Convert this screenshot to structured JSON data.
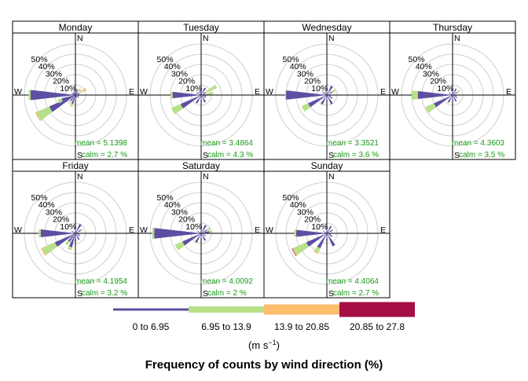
{
  "chart_data": {
    "type": "polar-bar",
    "title": "Frequency of counts by wind direction (%)",
    "radial_ticks": [
      "10%",
      "20%",
      "30%",
      "40%",
      "50%"
    ],
    "radial_max": 50,
    "cardinal_labels": {
      "n": "N",
      "e": "E",
      "s": "S",
      "w": "W"
    },
    "legend": {
      "unit": "(m s",
      "unit_sup": "−1",
      "unit_close": ")",
      "bins": [
        {
          "label": "0 to 6.95",
          "color": "#5e4fa2"
        },
        {
          "label": "6.95 to 13.9",
          "color": "#b7e08a"
        },
        {
          "label": "13.9 to 20.85",
          "color": "#fdbe6e"
        },
        {
          "label": "20.85 to 27.8",
          "color": "#a50f45"
        }
      ]
    },
    "panels": [
      {
        "name": "Monday",
        "mean_label": "mean",
        "mean": "5.1398",
        "calm_label": "calm",
        "calm": "2.7 %",
        "spokes": [
          {
            "dir": 270,
            "s": [
              44,
              2,
              0,
              0
            ]
          },
          {
            "dir": 240,
            "s": [
              28,
              14,
              1,
              0
            ]
          },
          {
            "dir": 250,
            "s": [
              14,
              4,
              0,
              0
            ]
          },
          {
            "dir": 60,
            "s": [
              4,
              5,
              3,
              0
            ]
          },
          {
            "dir": 40,
            "s": [
              3,
              2,
              2,
              0.3
            ]
          },
          {
            "dir": 200,
            "s": [
              9,
              3,
              0,
              0
            ]
          },
          {
            "dir": 220,
            "s": [
              7,
              2,
              0,
              0
            ]
          },
          {
            "dir": 0,
            "s": [
              5,
              0,
              0,
              0
            ]
          },
          {
            "dir": 20,
            "s": [
              6,
              0,
              0,
              0
            ]
          },
          {
            "dir": 80,
            "s": [
              4,
              0,
              0,
              0
            ]
          },
          {
            "dir": 100,
            "s": [
              3,
              0,
              0,
              0
            ]
          },
          {
            "dir": 120,
            "s": [
              4,
              0,
              0,
              0
            ]
          },
          {
            "dir": 140,
            "s": [
              3,
              0,
              0,
              0
            ]
          },
          {
            "dir": 160,
            "s": [
              3,
              0,
              0,
              0
            ]
          },
          {
            "dir": 180,
            "s": [
              5,
              0,
              0,
              0
            ]
          },
          {
            "dir": 290,
            "s": [
              4,
              0,
              0,
              0
            ]
          },
          {
            "dir": 310,
            "s": [
              3,
              0,
              0,
              0
            ]
          },
          {
            "dir": 330,
            "s": [
              4,
              0,
              0,
              0
            ]
          },
          {
            "dir": 350,
            "s": [
              3,
              0,
              0,
              0
            ]
          }
        ]
      },
      {
        "name": "Tuesday",
        "mean_label": "mean",
        "mean": "3.4864",
        "calm_label": "calm",
        "calm": "4.3 %",
        "spokes": [
          {
            "dir": 270,
            "s": [
              28,
              2,
              0,
              0
            ]
          },
          {
            "dir": 240,
            "s": [
              22,
              10,
              0,
              0
            ]
          },
          {
            "dir": 60,
            "s": [
              5,
              12,
              0,
              0
            ]
          },
          {
            "dir": 80,
            "s": [
              4,
              8,
              0,
              0
            ]
          },
          {
            "dir": 30,
            "s": [
              8,
              0,
              0,
              0
            ]
          },
          {
            "dir": 0,
            "s": [
              6,
              0,
              0,
              0
            ]
          },
          {
            "dir": 210,
            "s": [
              9,
              0,
              0,
              0
            ]
          },
          {
            "dir": 150,
            "s": [
              8,
              0,
              0,
              0
            ]
          },
          {
            "dir": 180,
            "s": [
              6,
              0,
              0,
              0
            ]
          },
          {
            "dir": 120,
            "s": [
              5,
              0,
              0,
              0
            ]
          },
          {
            "dir": 100,
            "s": [
              5,
              0,
              0,
              0
            ]
          },
          {
            "dir": 300,
            "s": [
              5,
              0,
              0,
              0
            ]
          },
          {
            "dir": 330,
            "s": [
              4,
              0,
              0,
              0
            ]
          },
          {
            "dir": 350,
            "s": [
              4,
              0,
              0,
              0
            ]
          }
        ]
      },
      {
        "name": "Wednesday",
        "mean_label": "mean",
        "mean": "3.3521",
        "calm_label": "calm",
        "calm": "3.6 %",
        "spokes": [
          {
            "dir": 270,
            "s": [
              40,
              1,
              0,
              0
            ]
          },
          {
            "dir": 240,
            "s": [
              20,
              7,
              0,
              0
            ]
          },
          {
            "dir": 60,
            "s": [
              6,
              4,
              0,
              0
            ]
          },
          {
            "dir": 30,
            "s": [
              10,
              0,
              0,
              0
            ]
          },
          {
            "dir": 0,
            "s": [
              6,
              0,
              0,
              0
            ]
          },
          {
            "dir": 210,
            "s": [
              10,
              1,
              0,
              0
            ]
          },
          {
            "dir": 150,
            "s": [
              10,
              0,
              0,
              0
            ]
          },
          {
            "dir": 180,
            "s": [
              6,
              0,
              0,
              0
            ]
          },
          {
            "dir": 120,
            "s": [
              6,
              0,
              0,
              0
            ]
          },
          {
            "dir": 100,
            "s": [
              4,
              0,
              0,
              0
            ]
          },
          {
            "dir": 300,
            "s": [
              5,
              0,
              0,
              0
            ]
          },
          {
            "dir": 330,
            "s": [
              4,
              0,
              0,
              0
            ]
          }
        ]
      },
      {
        "name": "Thursday",
        "mean_label": "mean",
        "mean": "4.3603",
        "calm_label": "calm",
        "calm": "3.5 %",
        "spokes": [
          {
            "dir": 270,
            "s": [
              34,
              6,
              0,
              0
            ]
          },
          {
            "dir": 240,
            "s": [
              20,
              9,
              0.3,
              0
            ]
          },
          {
            "dir": 60,
            "s": [
              5,
              3,
              0,
              0
            ]
          },
          {
            "dir": 30,
            "s": [
              7,
              0,
              0,
              0
            ]
          },
          {
            "dir": 0,
            "s": [
              5,
              0,
              0,
              0
            ]
          },
          {
            "dir": 210,
            "s": [
              8,
              1,
              0,
              0
            ]
          },
          {
            "dir": 150,
            "s": [
              7,
              0,
              0,
              0
            ]
          },
          {
            "dir": 180,
            "s": [
              5,
              0,
              0,
              0
            ]
          },
          {
            "dir": 120,
            "s": [
              5,
              0,
              0,
              0
            ]
          },
          {
            "dir": 100,
            "s": [
              4,
              0,
              0,
              0
            ]
          },
          {
            "dir": 300,
            "s": [
              4,
              0,
              0,
              0
            ]
          }
        ]
      },
      {
        "name": "Friday",
        "mean_label": "mean",
        "mean": "4.1954",
        "calm_label": "calm",
        "calm": "3.2 %",
        "spokes": [
          {
            "dir": 270,
            "s": [
              34,
              2,
              0,
              0
            ]
          },
          {
            "dir": 240,
            "s": [
              22,
              14,
              1,
              0
            ]
          },
          {
            "dir": 220,
            "s": [
              10,
              4,
              0,
              0
            ]
          },
          {
            "dir": 200,
            "s": [
              14,
              3,
              0,
              0
            ]
          },
          {
            "dir": 180,
            "s": [
              8,
              0,
              0,
              0
            ]
          },
          {
            "dir": 30,
            "s": [
              10,
              0,
              0,
              0
            ]
          },
          {
            "dir": 60,
            "s": [
              6,
              2,
              0,
              0
            ]
          },
          {
            "dir": 0,
            "s": [
              5,
              0,
              0,
              0
            ]
          },
          {
            "dir": 150,
            "s": [
              7,
              0,
              0,
              0
            ]
          },
          {
            "dir": 120,
            "s": [
              5,
              0,
              0,
              0
            ]
          },
          {
            "dir": 100,
            "s": [
              4,
              0,
              0,
              0
            ]
          },
          {
            "dir": 300,
            "s": [
              4,
              0,
              0,
              0
            ]
          }
        ]
      },
      {
        "name": "Saturday",
        "mean_label": "mean",
        "mean": "4.0092",
        "calm_label": "calm",
        "calm": "2 %",
        "spokes": [
          {
            "dir": 270,
            "s": [
              46,
              2,
              0,
              0
            ]
          },
          {
            "dir": 240,
            "s": [
              20,
              8,
              0,
              0
            ]
          },
          {
            "dir": 60,
            "s": [
              6,
              4,
              0,
              0
            ]
          },
          {
            "dir": 80,
            "s": [
              8,
              3,
              0,
              0
            ]
          },
          {
            "dir": 30,
            "s": [
              9,
              0,
              0,
              0
            ]
          },
          {
            "dir": 0,
            "s": [
              5,
              0,
              0,
              0
            ]
          },
          {
            "dir": 210,
            "s": [
              10,
              1,
              0,
              0
            ]
          },
          {
            "dir": 150,
            "s": [
              8,
              0,
              0,
              0
            ]
          },
          {
            "dir": 180,
            "s": [
              5,
              0,
              0,
              0
            ]
          },
          {
            "dir": 120,
            "s": [
              5,
              0,
              0,
              0
            ]
          },
          {
            "dir": 300,
            "s": [
              4,
              0,
              0,
              0
            ]
          }
        ]
      },
      {
        "name": "Sunday",
        "mean_label": "mean",
        "mean": "4.4064",
        "calm_label": "calm",
        "calm": "2.7 %",
        "spokes": [
          {
            "dir": 270,
            "s": [
              30,
              2,
              0,
              0
            ]
          },
          {
            "dir": 240,
            "s": [
              22,
              14,
              1,
              0.5
            ]
          },
          {
            "dir": 210,
            "s": [
              16,
              5,
              1,
              0
            ]
          },
          {
            "dir": 150,
            "s": [
              14,
              0,
              0,
              0
            ]
          },
          {
            "dir": 30,
            "s": [
              8,
              0,
              0,
              0
            ]
          },
          {
            "dir": 60,
            "s": [
              6,
              1,
              0,
              0
            ]
          },
          {
            "dir": 0,
            "s": [
              5,
              0,
              0,
              0
            ]
          },
          {
            "dir": 180,
            "s": [
              7,
              0,
              0,
              0
            ]
          },
          {
            "dir": 120,
            "s": [
              6,
              0,
              0,
              0
            ]
          },
          {
            "dir": 100,
            "s": [
              4,
              0,
              0,
              0
            ]
          },
          {
            "dir": 300,
            "s": [
              4,
              0,
              0,
              0
            ]
          }
        ]
      }
    ]
  }
}
